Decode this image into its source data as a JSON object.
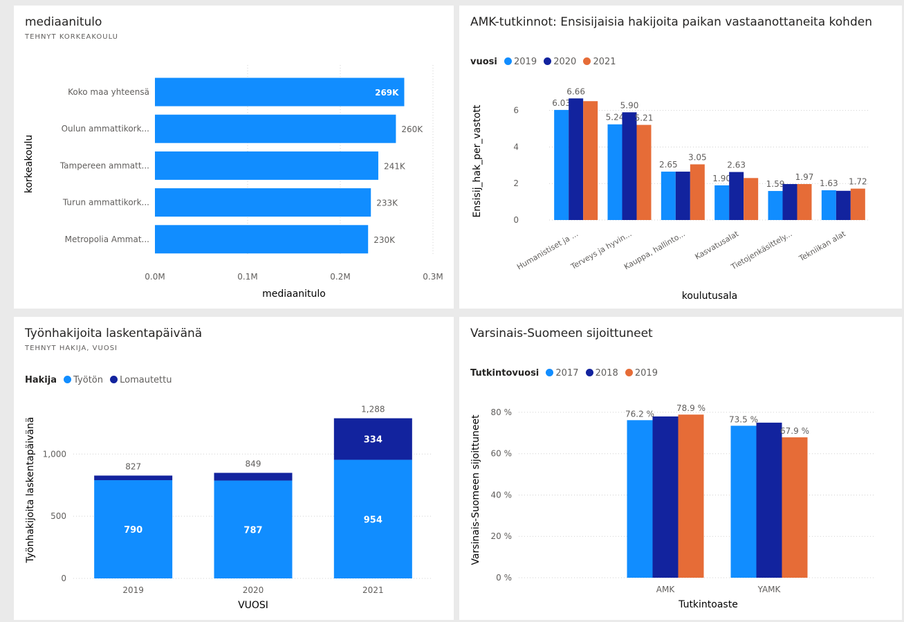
{
  "colors": {
    "light": "#118dff",
    "dark": "#12239e",
    "orange": "#e66c37",
    "grid": "#d0d0d0",
    "axis": "#605e5c"
  },
  "chart_data": [
    {
      "id": "median-income",
      "type": "bar",
      "orientation": "horizontal",
      "title": "mediaanitulo",
      "subtitle": "TEHNYT KORKEAKOULU",
      "xlabel": "mediaanitulo",
      "ylabel": "korkeakoulu",
      "xlim": [
        0,
        300000
      ],
      "xticks": [
        0,
        100000,
        200000,
        300000
      ],
      "xtick_labels": [
        "0.0M",
        "0.1M",
        "0.2M",
        "0.3M"
      ],
      "categories": [
        "Koko maa yhteensä",
        "Oulun ammattikork...",
        "Tampereen ammatt...",
        "Turun ammattikork...",
        "Metropolia Ammat..."
      ],
      "values": [
        269000,
        260000,
        241000,
        233000,
        230000
      ],
      "value_labels": [
        "269K",
        "260K",
        "241K",
        "233K",
        "230K"
      ]
    },
    {
      "id": "amk-applicants",
      "type": "bar",
      "title": "AMK-tutkinnot: Ensisijaisia hakijoita paikan vastaanottaneita kohden",
      "legend_title": "vuosi",
      "xlabel": "koulutusala",
      "ylabel": "Ensisij_hak_per_vastott",
      "ylim": [
        0,
        7.2
      ],
      "yticks": [
        0,
        2,
        4,
        6
      ],
      "categories": [
        "Humanistiset ja ...",
        "Terveys ja hyvin...",
        "Kauppa, hallinto...",
        "Kasvatusalat",
        "Tietojenkäsittely...",
        "Tekniikan alat"
      ],
      "series": [
        {
          "name": "2019",
          "values": [
            6.03,
            5.24,
            2.65,
            1.9,
            1.59,
            1.63
          ],
          "labels": [
            "6.03",
            "5.24",
            "2.65",
            "1.90",
            "1.59",
            "1.63"
          ]
        },
        {
          "name": "2020",
          "values": [
            6.66,
            5.9,
            2.65,
            2.63,
            1.97,
            1.6
          ],
          "labels": [
            "6.66",
            "5.90",
            "",
            "2.63",
            "",
            ""
          ]
        },
        {
          "name": "2021",
          "values": [
            6.51,
            5.21,
            3.05,
            2.3,
            1.97,
            1.72
          ],
          "labels": [
            "",
            "5.21",
            "3.05",
            "",
            "1.97",
            "1.72"
          ]
        }
      ]
    },
    {
      "id": "job-seekers",
      "type": "bar",
      "stacked": true,
      "title": "Työnhakijoita laskentapäivänä",
      "subtitle": "TEHNYT HAKIJA, VUOSI",
      "legend_title": "Hakija",
      "xlabel": "VUOSI",
      "ylabel": "Työnhakijoita laskentapäivänä",
      "ylim": [
        0,
        1380
      ],
      "yticks": [
        0,
        500,
        1000
      ],
      "ytick_labels": [
        "0",
        "500",
        "1,000"
      ],
      "categories": [
        "2019",
        "2020",
        "2021"
      ],
      "series": [
        {
          "name": "Työtön",
          "values": [
            790,
            787,
            954
          ],
          "labels": [
            "790",
            "787",
            "954"
          ]
        },
        {
          "name": "Lomautettu",
          "values": [
            37,
            62,
            334
          ],
          "labels": [
            "",
            "",
            "334"
          ]
        }
      ],
      "totals": [
        "827",
        "849",
        "1,288"
      ]
    },
    {
      "id": "varsinais-suomi",
      "type": "bar",
      "title": "Varsinais-Suomeen sijoittuneet",
      "legend_title": "Tutkintovuosi",
      "xlabel": "Tutkintoaste",
      "ylabel": "Varsinais-Suomeen sijoittuneet",
      "ylim": [
        0,
        0.86
      ],
      "yticks": [
        0,
        0.2,
        0.4,
        0.6,
        0.8
      ],
      "ytick_labels": [
        "0 %",
        "20 %",
        "40 %",
        "60 %",
        "80 %"
      ],
      "categories": [
        "AMK",
        "YAMK"
      ],
      "series": [
        {
          "name": "2017",
          "values": [
            0.762,
            0.735
          ],
          "labels": [
            "76.2 %",
            "73.5 %"
          ]
        },
        {
          "name": "2018",
          "values": [
            0.78,
            0.75
          ],
          "labels": [
            "",
            ""
          ]
        },
        {
          "name": "2019",
          "values": [
            0.789,
            0.679
          ],
          "labels": [
            "78.9 %",
            "67.9 %"
          ]
        }
      ]
    }
  ]
}
